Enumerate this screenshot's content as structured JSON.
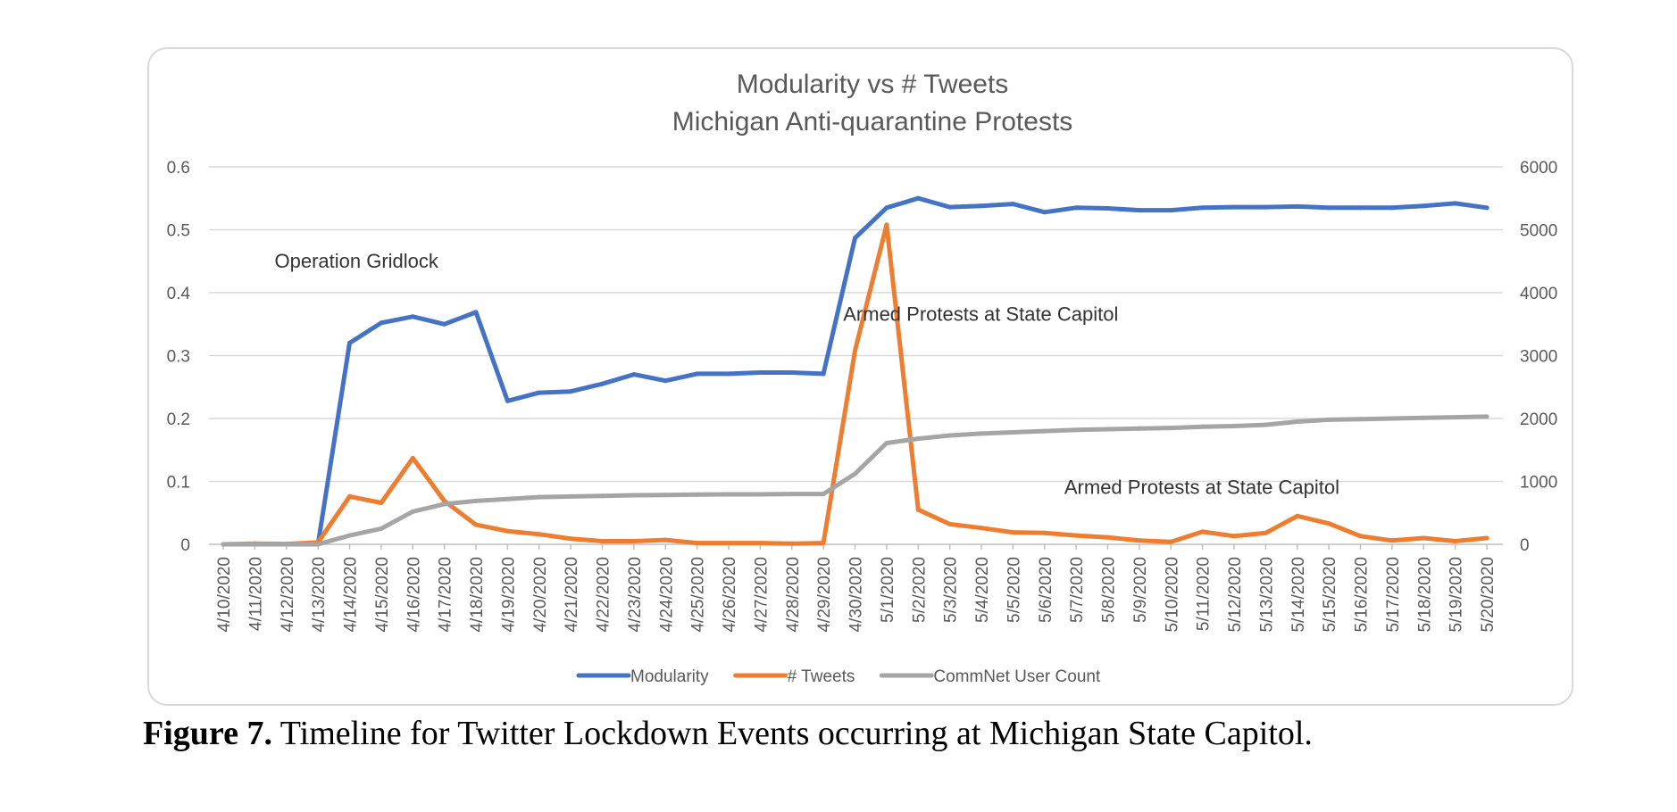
{
  "caption": {
    "label": "Figure 7.",
    "text": " Timeline for Twitter Lockdown Events occurring at Michigan State Capitol."
  },
  "chart_data": {
    "type": "line",
    "title": [
      "Modularity vs # Tweets",
      "Michigan Anti-quarantine Protests"
    ],
    "categories": [
      "4/10/2020",
      "4/11/2020",
      "4/12/2020",
      "4/13/2020",
      "4/14/2020",
      "4/15/2020",
      "4/16/2020",
      "4/17/2020",
      "4/18/2020",
      "4/19/2020",
      "4/20/2020",
      "4/21/2020",
      "4/22/2020",
      "4/23/2020",
      "4/24/2020",
      "4/25/2020",
      "4/26/2020",
      "4/27/2020",
      "4/28/2020",
      "4/29/2020",
      "4/30/2020",
      "5/1/2020",
      "5/2/2020",
      "5/3/2020",
      "5/4/2020",
      "5/5/2020",
      "5/6/2020",
      "5/7/2020",
      "5/8/2020",
      "5/9/2020",
      "5/10/2020",
      "5/11/2020",
      "5/12/2020",
      "5/13/2020",
      "5/14/2020",
      "5/15/2020",
      "5/16/2020",
      "5/17/2020",
      "5/18/2020",
      "5/19/2020",
      "5/20/2020"
    ],
    "y_left": {
      "lim": [
        0,
        0.6
      ],
      "ticks": [
        "0",
        "0.1",
        "0.2",
        "0.3",
        "0.4",
        "0.5",
        "0.6"
      ]
    },
    "y_right": {
      "lim": [
        0,
        6000
      ],
      "ticks": [
        "0",
        "1000",
        "2000",
        "3000",
        "4000",
        "5000",
        "6000"
      ]
    },
    "grid": true,
    "legend_position": "bottom",
    "series": [
      {
        "name": "Modularity",
        "axis": "left",
        "color": "#4472C4",
        "values": [
          0,
          0,
          0,
          0,
          0.32,
          0.352,
          0.362,
          0.35,
          0.369,
          0.228,
          0.241,
          0.243,
          0.255,
          0.27,
          0.26,
          0.271,
          0.271,
          0.273,
          0.273,
          0.271,
          0.487,
          0.535,
          0.55,
          0.536,
          0.538,
          0.541,
          0.528,
          0.535,
          0.534,
          0.531,
          0.531,
          0.535,
          0.536,
          0.536,
          0.537,
          0.535,
          0.535,
          0.535,
          0.538,
          0.542,
          0.535
        ]
      },
      {
        "name": "# Tweets",
        "axis": "right",
        "color": "#ED7D31",
        "values": [
          0,
          10,
          5,
          30,
          760,
          660,
          1370,
          690,
          310,
          210,
          160,
          90,
          50,
          50,
          70,
          20,
          20,
          20,
          10,
          20,
          3080,
          5080,
          550,
          320,
          260,
          190,
          180,
          140,
          110,
          60,
          40,
          200,
          130,
          180,
          450,
          330,
          130,
          60,
          100,
          50,
          100
        ]
      },
      {
        "name": "CommNet User Count",
        "axis": "right",
        "color": "#A5A5A5",
        "values": [
          0,
          0,
          0,
          0,
          140,
          250,
          520,
          640,
          690,
          720,
          750,
          760,
          770,
          780,
          785,
          790,
          795,
          795,
          800,
          800,
          1120,
          1610,
          1680,
          1730,
          1760,
          1780,
          1800,
          1820,
          1830,
          1840,
          1850,
          1870,
          1880,
          1900,
          1950,
          1980,
          1990,
          2000,
          2010,
          2020,
          2030
        ]
      }
    ],
    "annotations": [
      {
        "text": "Operation Gridlock",
        "x": "4/14/2020",
        "y_left": 0.44
      },
      {
        "text": "Armed Protests at State Capitol",
        "x": "5/2/2020",
        "y_left": 0.355
      },
      {
        "text": "Armed Protests at State Capitol",
        "x": "5/9/2020",
        "y_left": 0.08
      }
    ]
  }
}
